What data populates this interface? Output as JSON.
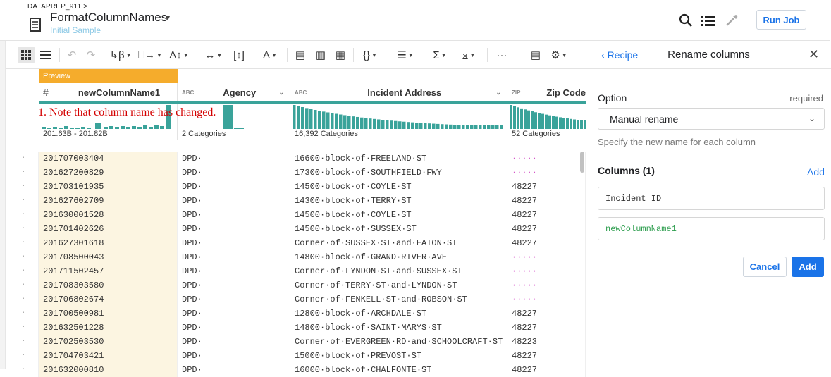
{
  "app": {
    "project": "DATAPREP_911 >",
    "flow_name": "FormatColumnNames",
    "sample": "Initial Sample",
    "run_job": "Run Job"
  },
  "toolbar": {
    "icons": [
      "grid-view-icon",
      "list-view-icon",
      "undo-icon",
      "redo-icon",
      "format-case-icon",
      "merge-icon",
      "sort-icon",
      "move-icon",
      "split-icon",
      "text-format-icon",
      "row-filter-icon",
      "column-filter-icon",
      "column-restructure-icon",
      "nested-data-icon",
      "filter-icon",
      "aggregate-icon",
      "join-icon",
      "more-icon",
      "search-transform-icon",
      "settings-icon"
    ]
  },
  "grid": {
    "preview_label": "Preview",
    "annotation": "1. Note that column name has changed.",
    "columns": [
      {
        "type": "#",
        "name": "newColumnName1",
        "summary": "201.63B - 201.82B"
      },
      {
        "type": "ABC",
        "name": "Agency",
        "summary": "2 Categories"
      },
      {
        "type": "ABC",
        "name": "Incident Address",
        "summary": "16,392 Categories"
      },
      {
        "type": "ZIP",
        "name": "Zip Code",
        "summary": "52 Categories"
      }
    ],
    "rows": [
      [
        "201707003404",
        "DPD·",
        "16600·block·of·FREELAND·ST",
        "·····"
      ],
      [
        "201627200829",
        "DPD·",
        "17300·block·of·SOUTHFIELD·FWY",
        "·····"
      ],
      [
        "201703101935",
        "DPD·",
        "14500·block·of·COYLE·ST",
        "48227"
      ],
      [
        "201627602709",
        "DPD·",
        "14300·block·of·TERRY·ST",
        "48227"
      ],
      [
        "201630001528",
        "DPD·",
        "14500·block·of·COYLE·ST",
        "48227"
      ],
      [
        "201701402626",
        "DPD·",
        "14500·block·of·SUSSEX·ST",
        "48227"
      ],
      [
        "201627301618",
        "DPD·",
        "Corner·of·SUSSEX·ST·and·EATON·ST",
        "48227"
      ],
      [
        "201708500043",
        "DPD·",
        "14800·block·of·GRAND·RIVER·AVE",
        "·····"
      ],
      [
        "201711502457",
        "DPD·",
        "Corner·of·LYNDON·ST·and·SUSSEX·ST",
        "·····"
      ],
      [
        "201708303580",
        "DPD·",
        "Corner·of·TERRY·ST·and·LYNDON·ST",
        "·····"
      ],
      [
        "201706802674",
        "DPD·",
        "Corner·of·FENKELL·ST·and·ROBSON·ST",
        "·····"
      ],
      [
        "201700500981",
        "DPD·",
        "12800·block·of·ARCHDALE·ST",
        "48227"
      ],
      [
        "201632501228",
        "DPD·",
        "14800·block·of·SAINT·MARYS·ST",
        "48227"
      ],
      [
        "201702503530",
        "DPD·",
        "Corner·of·EVERGREEN·RD·and·SCHOOLCRAFT·ST",
        "48223"
      ],
      [
        "201704703421",
        "DPD·",
        "15000·block·of·PREVOST·ST",
        "48227"
      ],
      [
        "201632000810",
        "DPD·",
        "16000·block·of·CHALFONTE·ST",
        "48227"
      ]
    ]
  },
  "panel": {
    "back": "Recipe",
    "title": "Rename columns",
    "option_label": "Option",
    "required": "required",
    "option_value": "Manual rename",
    "hint": "Specify the new name for each column",
    "columns_label": "Columns (1)",
    "add_link": "Add",
    "old_name": "Incident ID",
    "new_name": "newColumnName1",
    "cancel": "Cancel",
    "add_button": "Add"
  },
  "colors": {
    "accent": "#1a73e8",
    "preview": "#f5ac2c",
    "histogram": "#3aa39a",
    "annotation": "#d40000",
    "new_name": "#2e9e4f"
  }
}
